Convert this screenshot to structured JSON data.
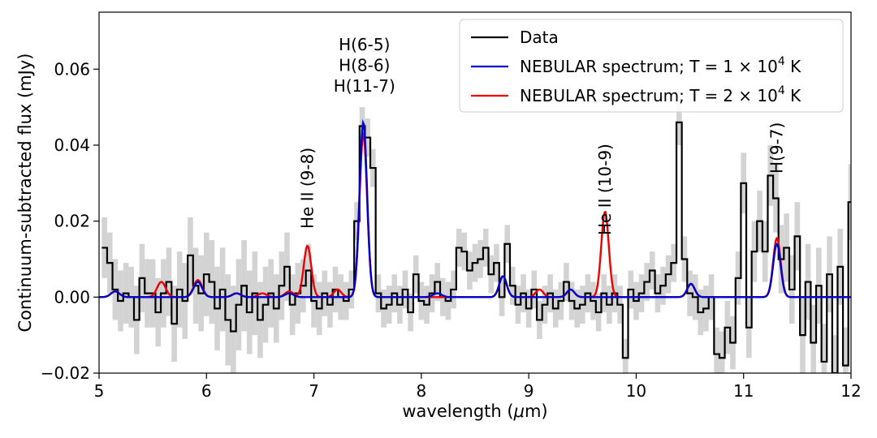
{
  "chart_data": {
    "type": "line",
    "title": "",
    "xlabel": "wavelength (μm)",
    "ylabel": "Continuum-subtracted flux (mJy)",
    "xlim": [
      5,
      12
    ],
    "ylim": [
      -0.02,
      0.075
    ],
    "xticks": [
      5,
      6,
      7,
      8,
      9,
      10,
      11,
      12
    ],
    "xtick_labels": [
      "5",
      "6",
      "7",
      "8",
      "9",
      "10",
      "11",
      "12"
    ],
    "yticks": [
      -0.02,
      0.0,
      0.02,
      0.04,
      0.06
    ],
    "ytick_labels": [
      "−0.02",
      "0.00",
      "0.02",
      "0.04",
      "0.06"
    ],
    "grid": false,
    "legend_position": "top-right",
    "annotations": [
      {
        "id": "h-6-5",
        "text": "H(6-5)",
        "x": 7.47,
        "orientation": "horizontal",
        "line": 0
      },
      {
        "id": "h-8-6",
        "text": "H(8-6)",
        "x": 7.47,
        "orientation": "horizontal",
        "line": 1
      },
      {
        "id": "h-11-7",
        "text": "H(11-7)",
        "x": 7.47,
        "orientation": "horizontal",
        "line": 2
      },
      {
        "id": "he2-9-8",
        "text": "He II (9-8)",
        "x": 6.94,
        "orientation": "vertical"
      },
      {
        "id": "he2-10-9",
        "text": "He II (10-9)",
        "x": 9.71,
        "orientation": "vertical"
      },
      {
        "id": "h-9-7",
        "text": "H(9-7)",
        "x": 11.31,
        "orientation": "vertical"
      }
    ],
    "series": [
      {
        "name": "Data",
        "color": "#000000",
        "style": "step",
        "uncertainty_color": "#d3d3d3",
        "x": [
          5.05,
          5.1,
          5.15,
          5.2,
          5.25,
          5.3,
          5.35,
          5.4,
          5.45,
          5.5,
          5.55,
          5.6,
          5.65,
          5.7,
          5.75,
          5.8,
          5.85,
          5.9,
          5.95,
          6.0,
          6.05,
          6.1,
          6.15,
          6.2,
          6.25,
          6.3,
          6.35,
          6.4,
          6.45,
          6.5,
          6.55,
          6.6,
          6.65,
          6.7,
          6.75,
          6.8,
          6.85,
          6.9,
          6.95,
          7.0,
          7.05,
          7.1,
          7.15,
          7.2,
          7.25,
          7.3,
          7.35,
          7.4,
          7.45,
          7.5,
          7.55,
          7.6,
          7.65,
          7.7,
          7.75,
          7.8,
          7.85,
          7.9,
          7.95,
          8.0,
          8.05,
          8.1,
          8.15,
          8.2,
          8.25,
          8.3,
          8.35,
          8.4,
          8.45,
          8.5,
          8.55,
          8.6,
          8.65,
          8.7,
          8.75,
          8.8,
          8.85,
          8.9,
          8.95,
          9.0,
          9.05,
          9.1,
          9.15,
          9.2,
          9.25,
          9.3,
          9.35,
          9.4,
          9.45,
          9.5,
          9.55,
          9.6,
          9.65,
          9.7,
          9.75,
          9.8,
          9.85,
          9.9,
          9.95,
          10.0,
          10.05,
          10.1,
          10.15,
          10.2,
          10.25,
          10.3,
          10.35,
          10.4,
          10.45,
          10.5,
          10.55,
          10.6,
          10.65,
          10.7,
          10.75,
          10.8,
          10.85,
          10.9,
          10.95,
          11.0,
          11.05,
          11.1,
          11.15,
          11.2,
          11.25,
          11.3,
          11.35,
          11.4,
          11.45,
          11.5,
          11.55,
          11.6,
          11.65,
          11.7,
          11.75,
          11.8,
          11.85,
          11.9,
          11.95,
          12.0
        ],
        "y": [
          0.013,
          0.009,
          0.002,
          -0.001,
          0.001,
          0.0,
          -0.006,
          0.005,
          0.001,
          0.001,
          -0.004,
          0.001,
          0.004,
          -0.007,
          0.002,
          -0.001,
          0.011,
          0.003,
          0.001,
          0.006,
          0.004,
          -0.003,
          0.002,
          -0.006,
          -0.009,
          -0.002,
          0.003,
          -0.004,
          0.001,
          -0.006,
          -0.002,
          0.001,
          -0.003,
          0.003,
          0.008,
          -0.002,
          0.001,
          0.003,
          0.007,
          -0.001,
          -0.003,
          0.001,
          -0.002,
          0.002,
          0.0,
          -0.001,
          0.002,
          0.02,
          0.045,
          0.042,
          0.034,
          0.001,
          -0.003,
          -0.002,
          0.001,
          -0.002,
          0.002,
          -0.004,
          0.006,
          -0.001,
          -0.002,
          0.001,
          0.004,
          0.0,
          -0.001,
          0.002,
          0.013,
          0.012,
          0.007,
          0.009,
          0.01,
          0.013,
          0.006,
          0.009,
          0.0,
          0.014,
          0.003,
          -0.002,
          0.001,
          -0.003,
          0.002,
          -0.006,
          -0.002,
          0.001,
          -0.003,
          -0.001,
          0.004,
          -0.001,
          -0.003,
          -0.002,
          0.001,
          -0.001,
          -0.004,
          0.001,
          -0.002,
          0.001,
          -0.002,
          -0.016,
          0.002,
          -0.001,
          0.001,
          0.004,
          0.007,
          0.001,
          0.003,
          0.006,
          0.009,
          0.046,
          0.01,
          0.001,
          0.0,
          -0.004,
          -0.003,
          0.0,
          -0.015,
          -0.016,
          -0.008,
          -0.012,
          0.005,
          0.03,
          -0.008,
          0.012,
          0.02,
          0.012,
          0.032,
          0.026,
          0.01,
          0.013,
          0.002,
          0.016,
          -0.01,
          0.004,
          -0.012,
          0.003,
          -0.017,
          0.006,
          -0.02,
          0.008,
          -0.018,
          0.025
        ],
        "y_err": [
          0.008,
          0.008,
          0.008,
          0.008,
          0.008,
          0.008,
          0.009,
          0.009,
          0.009,
          0.009,
          0.009,
          0.009,
          0.009,
          0.01,
          0.01,
          0.01,
          0.01,
          0.01,
          0.01,
          0.011,
          0.011,
          0.011,
          0.011,
          0.012,
          0.012,
          0.012,
          0.012,
          0.011,
          0.011,
          0.01,
          0.01,
          0.009,
          0.009,
          0.009,
          0.009,
          0.008,
          0.008,
          0.007,
          0.007,
          0.007,
          0.007,
          0.006,
          0.006,
          0.006,
          0.006,
          0.005,
          0.005,
          0.005,
          0.005,
          0.005,
          0.005,
          0.005,
          0.005,
          0.005,
          0.005,
          0.005,
          0.005,
          0.005,
          0.005,
          0.005,
          0.005,
          0.005,
          0.005,
          0.005,
          0.005,
          0.005,
          0.005,
          0.005,
          0.005,
          0.005,
          0.005,
          0.005,
          0.005,
          0.005,
          0.005,
          0.005,
          0.005,
          0.005,
          0.005,
          0.005,
          0.005,
          0.005,
          0.005,
          0.005,
          0.005,
          0.005,
          0.005,
          0.005,
          0.005,
          0.005,
          0.005,
          0.005,
          0.005,
          0.005,
          0.005,
          0.005,
          0.005,
          0.005,
          0.005,
          0.005,
          0.005,
          0.005,
          0.005,
          0.005,
          0.005,
          0.005,
          0.005,
          0.006,
          0.006,
          0.006,
          0.006,
          0.006,
          0.006,
          0.006,
          0.007,
          0.007,
          0.007,
          0.007,
          0.007,
          0.008,
          0.008,
          0.008,
          0.008,
          0.008,
          0.008,
          0.009,
          0.009,
          0.009,
          0.009,
          0.009,
          0.01,
          0.01,
          0.01,
          0.01,
          0.01,
          0.01,
          0.01,
          0.01,
          0.01,
          0.01
        ]
      },
      {
        "name": "NEBULAR spectrum; T = 1 × 10⁴ K",
        "legend_parts": [
          "NEBULAR spectrum; T",
          "=",
          "1 × 10",
          "4",
          " K"
        ],
        "color": "#0000cc",
        "style": "line",
        "lines": [
          {
            "center": 5.15,
            "amp": 0.0015,
            "sigma": 0.04
          },
          {
            "center": 5.92,
            "amp": 0.004,
            "sigma": 0.04
          },
          {
            "center": 6.28,
            "amp": 0.001,
            "sigma": 0.04
          },
          {
            "center": 6.77,
            "amp": 0.001,
            "sigma": 0.04
          },
          {
            "center": 7.46,
            "amp": 0.046,
            "sigma": 0.035
          },
          {
            "center": 8.15,
            "amp": 0.001,
            "sigma": 0.04
          },
          {
            "center": 8.76,
            "amp": 0.0055,
            "sigma": 0.035
          },
          {
            "center": 9.39,
            "amp": 0.002,
            "sigma": 0.035
          },
          {
            "center": 10.51,
            "amp": 0.0035,
            "sigma": 0.035
          },
          {
            "center": 11.31,
            "amp": 0.014,
            "sigma": 0.035
          }
        ]
      },
      {
        "name": "NEBULAR spectrum; T = 2 × 10⁴ K",
        "legend_parts": [
          "NEBULAR spectrum; T",
          "=",
          "2 × 10",
          "4",
          " K"
        ],
        "color": "#ee0000",
        "style": "line",
        "lines": [
          {
            "center": 5.15,
            "amp": 0.0015,
            "sigma": 0.04
          },
          {
            "center": 5.58,
            "amp": 0.004,
            "sigma": 0.04
          },
          {
            "center": 5.92,
            "amp": 0.0045,
            "sigma": 0.04
          },
          {
            "center": 6.28,
            "amp": 0.001,
            "sigma": 0.04
          },
          {
            "center": 6.52,
            "amp": 0.001,
            "sigma": 0.04
          },
          {
            "center": 6.77,
            "amp": 0.0015,
            "sigma": 0.04
          },
          {
            "center": 6.94,
            "amp": 0.0135,
            "sigma": 0.035
          },
          {
            "center": 7.22,
            "amp": 0.002,
            "sigma": 0.035
          },
          {
            "center": 7.46,
            "amp": 0.043,
            "sigma": 0.035
          },
          {
            "center": 8.76,
            "amp": 0.0055,
            "sigma": 0.035
          },
          {
            "center": 9.1,
            "amp": 0.002,
            "sigma": 0.035
          },
          {
            "center": 9.39,
            "amp": 0.002,
            "sigma": 0.035
          },
          {
            "center": 9.71,
            "amp": 0.0225,
            "sigma": 0.035
          },
          {
            "center": 10.51,
            "amp": 0.0035,
            "sigma": 0.035
          },
          {
            "center": 11.31,
            "amp": 0.0155,
            "sigma": 0.035
          }
        ]
      }
    ]
  }
}
